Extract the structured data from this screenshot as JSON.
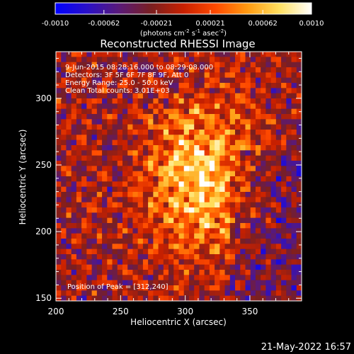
{
  "chart_data": {
    "type": "heatmap",
    "title": "Reconstructed RHESSI Image",
    "xlabel": "Heliocentric X (arcsec)",
    "ylabel": "Heliocentric Y (arcsec)",
    "xlim": [
      200,
      390
    ],
    "ylim": [
      148,
      335
    ],
    "x_ticks": [
      "200",
      "250",
      "300",
      "350"
    ],
    "y_ticks": [
      "150",
      "200",
      "250",
      "300"
    ],
    "colorbar": {
      "ticks": [
        "-0.0010",
        "-0.00062",
        "-0.00021",
        "0.00021",
        "0.00062",
        "0.0010"
      ],
      "unit_label": {
        "open": "(photons cm",
        "exp1": "-2",
        "mid1": " s",
        "exp2": "-1",
        "mid2": " asec",
        "exp3": "-2",
        "close": ")"
      },
      "range": [
        -0.001,
        0.001
      ],
      "colors": [
        "#0000ff",
        "#2a10c8",
        "#5a1a78",
        "#7a1f20",
        "#c82000",
        "#ff4a00",
        "#ff9a10",
        "#ffe060",
        "#ffffff"
      ]
    },
    "annotations": {
      "time": "9-Jun-2015 08:28:16.000 to 08:29:08.000",
      "detectors": "Detectors: 3F 5F 6F 7F 8F 9F, Att 0",
      "energy": "Energy Range: 25.0 - 50.0 keV",
      "clean": "Clean     Total counts: 3.01E+03",
      "peak": "Position of Peak = [312,240]"
    },
    "peak_position": [
      312,
      240
    ],
    "grid": false
  },
  "footer_date": "21-May-2022 16:57"
}
